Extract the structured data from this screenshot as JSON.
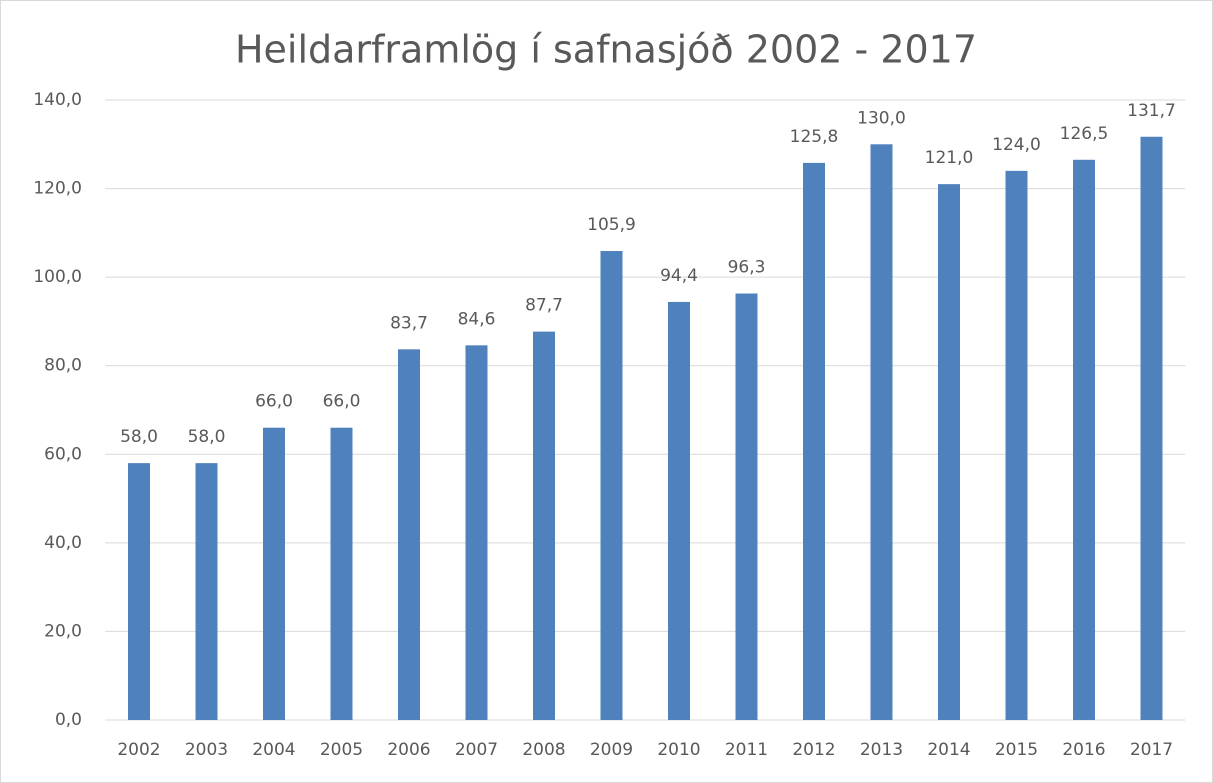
{
  "chart_data": {
    "type": "bar",
    "title": "Heildarframlög í safnasjóð 2002 - 2017",
    "categories": [
      "2002",
      "2003",
      "2004",
      "2005",
      "2006",
      "2007",
      "2008",
      "2009",
      "2010",
      "2011",
      "2012",
      "2013",
      "2014",
      "2015",
      "2016",
      "2017"
    ],
    "values": [
      58.0,
      58.0,
      66.0,
      66.0,
      83.7,
      84.6,
      87.7,
      105.9,
      94.4,
      96.3,
      125.8,
      130.0,
      121.0,
      124.0,
      126.5,
      131.7
    ],
    "value_labels": [
      "58,0",
      "58,0",
      "66,0",
      "66,0",
      "83,7",
      "84,6",
      "87,7",
      "105,9",
      "94,4",
      "96,3",
      "125,8",
      "130,0",
      "121,0",
      "124,0",
      "126,5",
      "131,7"
    ],
    "color": "#4f81bd",
    "ylim": [
      0,
      140
    ],
    "yticks": [
      {
        "value": 0,
        "label": "0,0"
      },
      {
        "value": 20,
        "label": "20,0"
      },
      {
        "value": 40,
        "label": "40,0"
      },
      {
        "value": 60,
        "label": "60,0"
      },
      {
        "value": 80,
        "label": "80,0"
      },
      {
        "value": 100,
        "label": "100,0"
      },
      {
        "value": 120,
        "label": "120,0"
      },
      {
        "value": 140,
        "label": "140,0"
      }
    ],
    "grid": true
  }
}
